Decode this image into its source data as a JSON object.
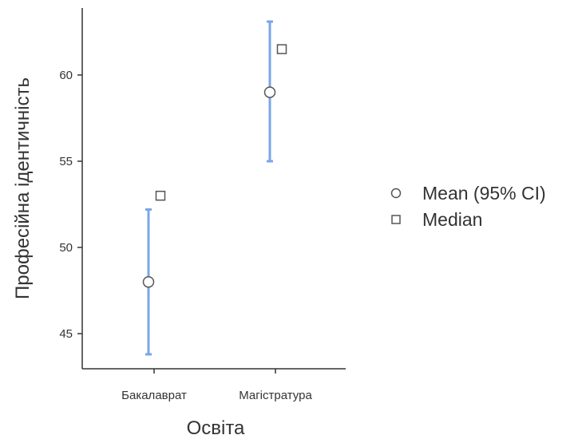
{
  "chart_data": {
    "type": "scatter",
    "xlabel": "Освіта",
    "ylabel": "Професійна ідентичність",
    "categories": [
      "Бакалаврат",
      "Магістратура"
    ],
    "ylim": [
      43,
      64
    ],
    "yticks": [
      45,
      50,
      55,
      60
    ],
    "series": [
      {
        "name": "Mean (95% CI)",
        "marker": "circle",
        "values": [
          48.0,
          59.0
        ],
        "ci_low": [
          43.8,
          55.0
        ],
        "ci_high": [
          52.2,
          63.1
        ]
      },
      {
        "name": "Median",
        "marker": "square",
        "values": [
          53.0,
          61.5
        ]
      }
    ],
    "legend_position": "right",
    "grid": false,
    "colors": {
      "ci": "#7aa6e8",
      "marker_stroke": "#555555",
      "axis": "#333333"
    }
  }
}
